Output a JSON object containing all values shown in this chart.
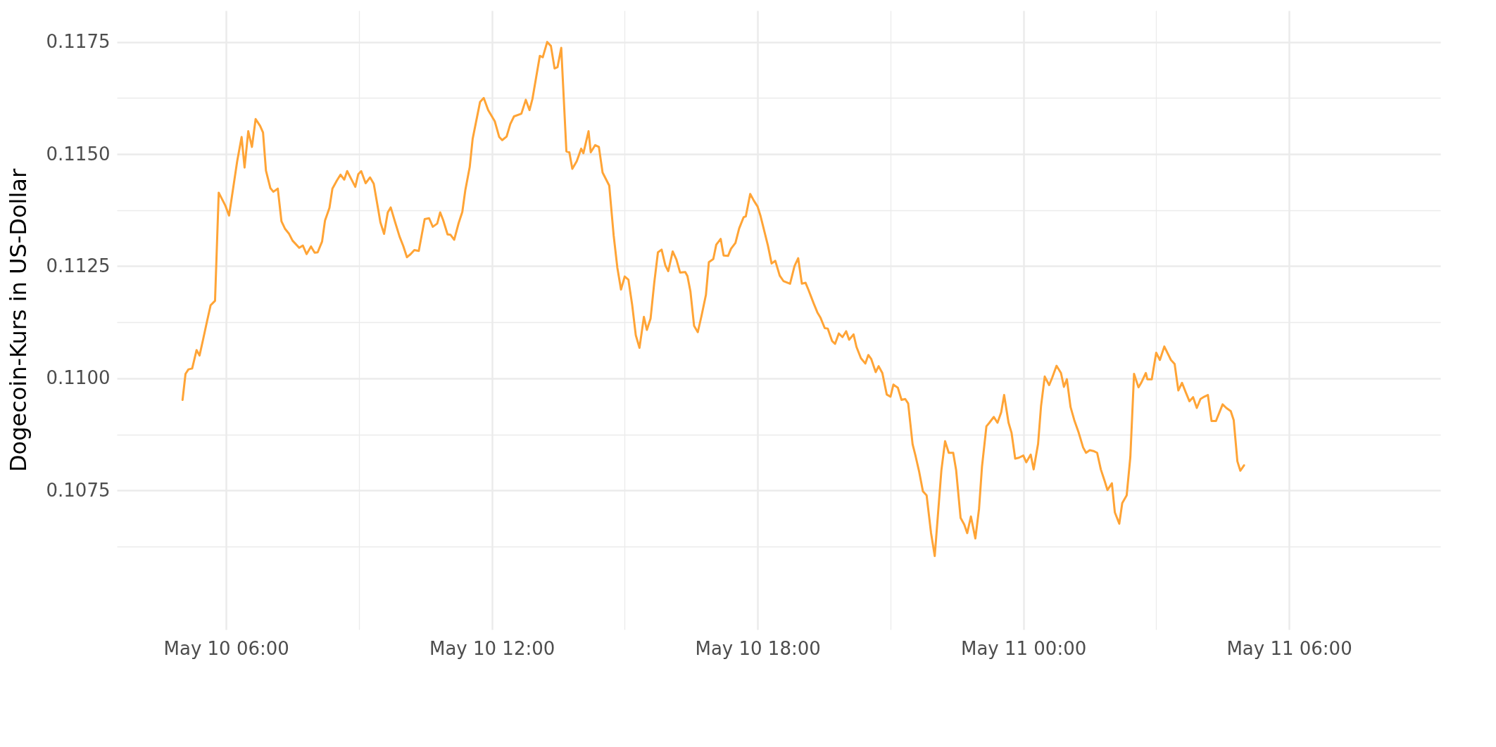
{
  "chart_data": {
    "type": "line",
    "ylabel": "Dogecoin-Kurs in US-Dollar",
    "grid": true,
    "xlim": [
      "--05-10T03:32",
      "--05-11T09:25"
    ],
    "xticks": [
      {
        "value": "--05-10T06:00",
        "label": "May 10 06:00"
      },
      {
        "value": "--05-10T09:00",
        "label": null
      },
      {
        "value": "--05-10T12:00",
        "label": "May 10 12:00"
      },
      {
        "value": "--05-10T15:00",
        "label": null
      },
      {
        "value": "--05-10T18:00",
        "label": "May 10 18:00"
      },
      {
        "value": "--05-10T21:00",
        "label": null
      },
      {
        "value": "--05-11T00:00",
        "label": "May 11 00:00"
      },
      {
        "value": "--05-11T03:00",
        "label": null
      },
      {
        "value": "--05-11T06:00",
        "label": "May 11 06:00"
      }
    ],
    "ylim": [
      0.1044,
      0.1182
    ],
    "yticks": [
      {
        "value": 0.10625,
        "label": null
      },
      0.1075,
      {
        "value": 0.10875,
        "label": null
      },
      {
        "value": 0.11,
        "label": "0.1100"
      },
      {
        "value": 0.11125,
        "label": null
      },
      0.1125,
      {
        "value": 0.11375,
        "label": null
      },
      {
        "value": 0.115,
        "label": "0.1150"
      },
      {
        "value": 0.11625,
        "label": null
      },
      0.1175
    ],
    "x": [
      "--05-10T05:01",
      "--05-10T05:05",
      "--05-10T05:09",
      "--05-10T05:14",
      "--05-10T05:20",
      "--05-10T05:24",
      "--05-10T05:29",
      "--05-10T05:34",
      "--05-10T05:39",
      "--05-10T05:45",
      "--05-10T05:50",
      "--05-10T05:59",
      "--05-10T06:04",
      "--05-10T06:15",
      "--05-10T06:21",
      "--05-10T06:25",
      "--05-10T06:30",
      "--05-10T06:35",
      "--05-10T06:40",
      "--05-10T06:46",
      "--05-10T06:50",
      "--05-10T06:54",
      "--05-10T07:00",
      "--05-10T07:04",
      "--05-10T07:10",
      "--05-10T07:15",
      "--05-10T07:20",
      "--05-10T07:25",
      "--05-10T07:30",
      "--05-10T07:39",
      "--05-10T07:44",
      "--05-10T07:49",
      "--05-10T07:55",
      "--05-10T08:00",
      "--05-10T08:04",
      "--05-10T08:10",
      "--05-10T08:14",
      "--05-10T08:20",
      "--05-10T08:24",
      "--05-10T08:30",
      "--05-10T08:35",
      "--05-10T08:40",
      "--05-10T08:44",
      "--05-10T08:55",
      "--05-10T08:59",
      "--05-10T09:03",
      "--05-10T09:09",
      "--05-10T09:15",
      "--05-10T09:20",
      "--05-10T09:26",
      "--05-10T09:29",
      "--05-10T09:34",
      "--05-10T09:39",
      "--05-10T09:43",
      "--05-10T09:49",
      "--05-10T09:55",
      "--05-10T10:00",
      "--05-10T10:05",
      "--05-10T10:10",
      "--05-10T10:15",
      "--05-10T10:21",
      "--05-10T10:29",
      "--05-10T10:35",
      "--05-10T10:40",
      "--05-10T10:46",
      "--05-10T10:50",
      "--05-10T10:54",
      "--05-10T11:00",
      "--05-10T11:04",
      "--05-10T11:09",
      "--05-10T11:15",
      "--05-10T11:20",
      "--05-10T11:24",
      "--05-10T11:30",
      "--05-10T11:34",
      "--05-10T11:44",
      "--05-10T11:49",
      "--05-10T11:55",
      "--05-10T12:04",
      "--05-10T12:10",
      "--05-10T12:14",
      "--05-10T12:20",
      "--05-10T12:25",
      "--05-10T12:30",
      "--05-10T12:40",
      "--05-10T12:46",
      "--05-10T12:51",
      "--05-10T12:55",
      "--05-10T13:05",
      "--05-10T13:09",
      "--05-10T13:15",
      "--05-10T13:20",
      "--05-10T13:25",
      "--05-10T13:29",
      "--05-10T13:34",
      "--05-10T13:41",
      "--05-10T13:45",
      "--05-10T13:49",
      "--05-10T13:55",
      "--05-10T14:01",
      "--05-10T14:04",
      "--05-10T14:11",
      "--05-10T14:14",
      "--05-10T14:20",
      "--05-10T14:25",
      "--05-10T14:30",
      "--05-10T14:34",
      "--05-10T14:39",
      "--05-10T14:45",
      "--05-10T14:50",
      "--05-10T14:55",
      "--05-10T15:00",
      "--05-10T15:05",
      "--05-10T15:10",
      "--05-10T15:15",
      "--05-10T15:20",
      "--05-10T15:26",
      "--05-10T15:30",
      "--05-10T15:35",
      "--05-10T15:40",
      "--05-10T15:45",
      "--05-10T15:50",
      "--05-10T15:55",
      "--05-10T15:59",
      "--05-10T16:05",
      "--05-10T16:10",
      "--05-10T16:15",
      "--05-10T16:22",
      "--05-10T16:25",
      "--05-10T16:29",
      "--05-10T16:34",
      "--05-10T16:39",
      "--05-10T16:44",
      "--05-10T16:50",
      "--05-10T16:54",
      "--05-10T17:00",
      "--05-10T17:04",
      "--05-10T17:10",
      "--05-10T17:14",
      "--05-10T17:20",
      "--05-10T17:24",
      "--05-10T17:30",
      "--05-10T17:35",
      "--05-10T17:41",
      "--05-10T17:44",
      "--05-10T17:50",
      "--05-10T17:55",
      "--05-10T18:00",
      "--05-10T18:04",
      "--05-10T18:09",
      "--05-10T18:14",
      "--05-10T18:19",
      "--05-10T18:24",
      "--05-10T18:30",
      "--05-10T18:35",
      "--05-10T18:44",
      "--05-10T18:50",
      "--05-10T18:55",
      "--05-10T19:00",
      "--05-10T19:05",
      "--05-10T19:09",
      "--05-10T19:16",
      "--05-10T19:21",
      "--05-10T19:25",
      "--05-10T19:31",
      "--05-10T19:35",
      "--05-10T19:41",
      "--05-10T19:45",
      "--05-10T19:50",
      "--05-10T19:55",
      "--05-10T20:00",
      "--05-10T20:04",
      "--05-10T20:10",
      "--05-10T20:14",
      "--05-10T20:20",
      "--05-10T20:26",
      "--05-10T20:30",
      "--05-10T20:34",
      "--05-10T20:40",
      "--05-10T20:44",
      "--05-10T20:49",
      "--05-10T20:55",
      "--05-10T21:00",
      "--05-10T21:04",
      "--05-10T21:10",
      "--05-10T21:15",
      "--05-10T21:20",
      "--05-10T21:24",
      "--05-10T21:30",
      "--05-10T21:34",
      "--05-10T21:39",
      "--05-10T21:44",
      "--05-10T21:49",
      "--05-10T21:55",
      "--05-10T22:00",
      "--05-10T22:09",
      "--05-10T22:14",
      "--05-10T22:19",
      "--05-10T22:25",
      "--05-10T22:29",
      "--05-10T22:35",
      "--05-10T22:40",
      "--05-10T22:44",
      "--05-10T22:49",
      "--05-10T22:55",
      "--05-10T23:00",
      "--05-10T23:04",
      "--05-10T23:10",
      "--05-10T23:14",
      "--05-10T23:20",
      "--05-10T23:25",
      "--05-10T23:30",
      "--05-10T23:34",
      "--05-10T23:40",
      "--05-10T23:44",
      "--05-10T23:49",
      "--05-10T23:54",
      "--05-11T00:00",
      "--05-11T00:04",
      "--05-11T00:10",
      "--05-11T00:14",
      "--05-11T00:20",
      "--05-11T00:24",
      "--05-11T00:29",
      "--05-11T00:35",
      "--05-11T00:39",
      "--05-11T00:45",
      "--05-11T00:51",
      "--05-11T00:55",
      "--05-11T00:59",
      "--05-11T01:04",
      "--05-11T01:09",
      "--05-11T01:15",
      "--05-11T01:21",
      "--05-11T01:25",
      "--05-11T01:30",
      "--05-11T01:35",
      "--05-11T01:40",
      "--05-11T01:45",
      "--05-11T01:50",
      "--05-11T01:54",
      "--05-11T02:00",
      "--05-11T02:04",
      "--05-11T02:10",
      "--05-11T02:14",
      "--05-11T02:20",
      "--05-11T02:25",
      "--05-11T02:30",
      "--05-11T02:36",
      "--05-11T02:40",
      "--05-11T02:46",
      "--05-11T02:48",
      "--05-11T02:54",
      "--05-11T03:00",
      "--05-11T03:05",
      "--05-11T03:11",
      "--05-11T03:20",
      "--05-11T03:25",
      "--05-11T03:30",
      "--05-11T03:35",
      "--05-11T03:40",
      "--05-11T03:45",
      "--05-11T03:50",
      "--05-11T03:55",
      "--05-11T04:00",
      "--05-11T04:05",
      "--05-11T04:10",
      "--05-11T04:15",
      "--05-11T04:21",
      "--05-11T04:30",
      "--05-11T04:35",
      "--05-11T04:41",
      "--05-11T04:45",
      "--05-11T04:50",
      "--05-11T04:54",
      "--05-11T04:59"
    ],
    "series": [
      {
        "color": "#ffa436",
        "values": [
          0.10952,
          0.1101,
          0.1102,
          0.11022,
          0.11063,
          0.11051,
          0.11088,
          0.11126,
          0.11163,
          0.11173,
          0.11414,
          0.11385,
          0.11363,
          0.11484,
          0.11538,
          0.1147,
          0.11551,
          0.11516,
          0.11578,
          0.11563,
          0.11548,
          0.11463,
          0.11424,
          0.11416,
          0.11423,
          0.1135,
          0.11333,
          0.11323,
          0.11307,
          0.11291,
          0.11296,
          0.11277,
          0.11294,
          0.1128,
          0.11281,
          0.11305,
          0.11352,
          0.1138,
          0.11423,
          0.11441,
          0.11454,
          0.11443,
          0.11462,
          0.11427,
          0.11455,
          0.11462,
          0.11435,
          0.11448,
          0.11434,
          0.11377,
          0.11348,
          0.11322,
          0.1137,
          0.11381,
          0.11348,
          0.11316,
          0.11295,
          0.1127,
          0.11277,
          0.11286,
          0.11284,
          0.11355,
          0.11357,
          0.11338,
          0.11345,
          0.1137,
          0.11353,
          0.11321,
          0.1132,
          0.11309,
          0.11346,
          0.11371,
          0.11419,
          0.11471,
          0.11534,
          0.11616,
          0.11625,
          0.11598,
          0.11573,
          0.11538,
          0.11531,
          0.11539,
          0.11567,
          0.11584,
          0.1159,
          0.11621,
          0.11598,
          0.11623,
          0.11719,
          0.11716,
          0.1175,
          0.11741,
          0.11691,
          0.11694,
          0.11737,
          0.11506,
          0.11504,
          0.11467,
          0.11484,
          0.11512,
          0.11502,
          0.11551,
          0.11504,
          0.1152,
          0.11516,
          0.11459,
          0.11446,
          0.1143,
          0.11319,
          0.11247,
          0.11198,
          0.11227,
          0.1122,
          0.11165,
          0.11096,
          0.11068,
          0.11137,
          0.11108,
          0.11133,
          0.11213,
          0.11281,
          0.11287,
          0.11252,
          0.11239,
          0.11283,
          0.11265,
          0.11236,
          0.11237,
          0.11228,
          0.11194,
          0.11117,
          0.11103,
          0.11139,
          0.11186,
          0.11259,
          0.11266,
          0.11298,
          0.11311,
          0.11274,
          0.11273,
          0.11289,
          0.11302,
          0.11334,
          0.11359,
          0.11361,
          0.11411,
          0.11396,
          0.11383,
          0.11362,
          0.11329,
          0.11296,
          0.11256,
          0.11262,
          0.11229,
          0.11217,
          0.11211,
          0.1125,
          0.11268,
          0.11211,
          0.11213,
          0.11197,
          0.11167,
          0.11147,
          0.11136,
          0.11112,
          0.11111,
          0.11083,
          0.11077,
          0.111,
          0.11092,
          0.11105,
          0.11086,
          0.11098,
          0.1107,
          0.11045,
          0.11033,
          0.11052,
          0.11043,
          0.11014,
          0.11027,
          0.11012,
          0.10964,
          0.10959,
          0.10986,
          0.10979,
          0.10952,
          0.10954,
          0.10944,
          0.10853,
          0.10827,
          0.10791,
          0.10748,
          0.10739,
          0.10655,
          0.10604,
          0.10795,
          0.1086,
          0.10834,
          0.10834,
          0.10795,
          0.10689,
          0.10674,
          0.10655,
          0.10692,
          0.10643,
          0.10709,
          0.10803,
          0.10893,
          0.10901,
          0.10914,
          0.10901,
          0.10924,
          0.10963,
          0.10901,
          0.10879,
          0.10821,
          0.10823,
          0.10828,
          0.10813,
          0.1083,
          0.10797,
          0.10854,
          0.10938,
          0.11004,
          0.10985,
          0.11001,
          0.11028,
          0.11012,
          0.10981,
          0.10998,
          0.10936,
          0.10907,
          0.10879,
          0.10846,
          0.10834,
          0.1084,
          0.10838,
          0.10834,
          0.10797,
          0.10772,
          0.10751,
          0.10766,
          0.10701,
          0.10676,
          0.10722,
          0.10739,
          0.10825,
          0.1101,
          0.1098,
          0.10991,
          0.11012,
          0.10998,
          0.10998,
          0.11057,
          0.11041,
          0.11071,
          0.11041,
          0.11032,
          0.10973,
          0.1099,
          0.10969,
          0.10949,
          0.10958,
          0.10934,
          0.10954,
          0.10959,
          0.10963,
          0.10905,
          0.10905,
          0.10942,
          0.10934,
          0.10927,
          0.10907,
          0.10815,
          0.10794,
          0.10806
        ]
      }
    ]
  }
}
